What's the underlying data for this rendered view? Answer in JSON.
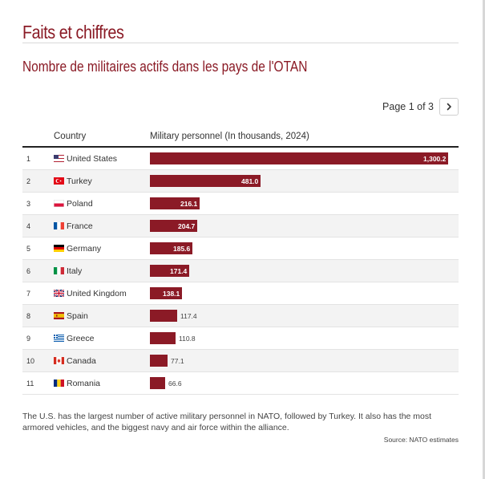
{
  "section_title": "Faits et chiffres",
  "chart_title": "Nombre de militaires actifs dans les pays de l'OTAN",
  "pager": {
    "text": "Page 1 of 3"
  },
  "table": {
    "col_country": "Country",
    "col_value": "Military personnel (In thousands, 2024)"
  },
  "colors": {
    "bar": "#8b1a26",
    "title": "#8a1a25"
  },
  "chart_data": {
    "type": "bar",
    "orientation": "horizontal",
    "categories": [
      "United States",
      "Turkey",
      "Poland",
      "France",
      "Germany",
      "Italy",
      "United Kingdom",
      "Spain",
      "Greece",
      "Canada",
      "Romania"
    ],
    "values": [
      1300.2,
      481.0,
      216.1,
      204.7,
      185.6,
      171.4,
      138.1,
      117.4,
      110.8,
      77.1,
      66.6
    ],
    "value_labels": [
      "1,300.2",
      "481.0",
      "216.1",
      "204.7",
      "185.6",
      "171.4",
      "138.1",
      "117.4",
      "110.8",
      "77.1",
      "66.6"
    ],
    "ranks": [
      "1",
      "2",
      "3",
      "4",
      "5",
      "6",
      "7",
      "8",
      "9",
      "10",
      "11"
    ],
    "flags": [
      "us-flag-icon",
      "turkey-flag-icon",
      "poland-flag-icon",
      "france-flag-icon",
      "germany-flag-icon",
      "italy-flag-icon",
      "uk-flag-icon",
      "spain-flag-icon",
      "greece-flag-icon",
      "canada-flag-icon",
      "romania-flag-icon"
    ],
    "ylabel": "Military personnel (In thousands, 2024)",
    "xlim": [
      0,
      1300.2
    ],
    "grid": false
  },
  "footnote": "The U.S. has the largest number of active military personnel in NATO, followed by Turkey. It also has the most armored vehicles, and the biggest navy and air force within the alliance.",
  "source": "Source: NATO estimates"
}
